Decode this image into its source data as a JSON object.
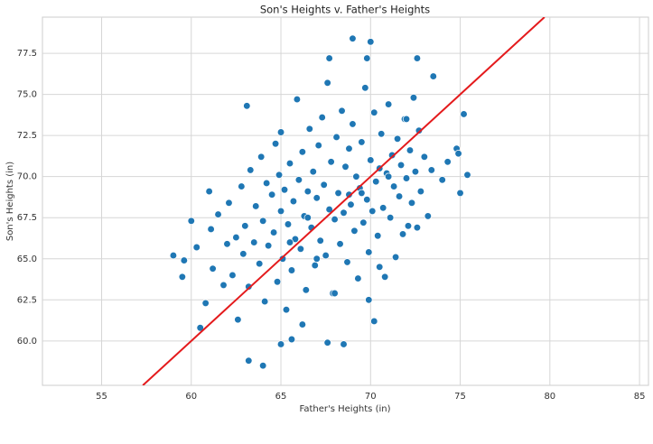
{
  "chart_data": {
    "type": "scatter",
    "title": "Son's Heights v. Father's Heights",
    "xlabel": "Father's Heights (in)",
    "ylabel": "Son's Heights (in)",
    "xlim": [
      51.7,
      85.5
    ],
    "ylim": [
      57.3,
      79.7
    ],
    "xticks": [
      55,
      60,
      65,
      70,
      75,
      80,
      85
    ],
    "yticks": [
      {
        "value": 60,
        "label": "60.0"
      },
      {
        "value": 62.5,
        "label": "62.5"
      },
      {
        "value": 65,
        "label": "65.0"
      },
      {
        "value": 67.5,
        "label": "67.5"
      },
      {
        "value": 70,
        "label": "70.0"
      },
      {
        "value": 72.5,
        "label": "72.5"
      },
      {
        "value": 75,
        "label": "75.0"
      },
      {
        "value": 77.5,
        "label": "77.5"
      }
    ],
    "grid": true,
    "color": "#1f77b4",
    "x": [
      59.0,
      59.5,
      59.6,
      60.0,
      60.3,
      60.5,
      60.8,
      61.0,
      61.1,
      61.2,
      61.5,
      61.8,
      62.0,
      62.1,
      62.3,
      62.5,
      62.6,
      62.8,
      62.9,
      63.0,
      63.1,
      63.2,
      63.3,
      63.5,
      63.6,
      63.8,
      63.9,
      64.0,
      64.1,
      64.2,
      64.3,
      64.5,
      64.6,
      64.7,
      64.8,
      64.9,
      65.0,
      65.0,
      65.1,
      65.2,
      65.3,
      65.4,
      65.5,
      65.6,
      65.7,
      65.8,
      65.9,
      66.0,
      66.1,
      66.2,
      66.3,
      66.4,
      66.5,
      66.6,
      66.7,
      66.8,
      66.9,
      67.0,
      67.1,
      67.2,
      67.3,
      67.4,
      67.5,
      67.6,
      67.7,
      67.8,
      67.9,
      68.0,
      68.1,
      68.2,
      68.3,
      68.4,
      68.5,
      68.6,
      68.7,
      68.8,
      68.9,
      69.0,
      69.1,
      69.2,
      69.3,
      69.4,
      69.5,
      69.6,
      69.7,
      69.8,
      69.9,
      70.0,
      70.1,
      70.2,
      70.3,
      70.4,
      70.5,
      70.6,
      70.7,
      70.8,
      70.9,
      71.0,
      71.1,
      71.2,
      71.3,
      71.4,
      71.5,
      71.6,
      71.7,
      71.8,
      71.9,
      72.0,
      72.1,
      72.2,
      72.3,
      72.4,
      72.5,
      72.6,
      72.7,
      72.8,
      73.0,
      73.2,
      73.4,
      73.5,
      74.0,
      74.3,
      74.8,
      74.9,
      75.0,
      75.2,
      75.4,
      63.2,
      64.0,
      69.0,
      70.0,
      67.7,
      69.8,
      72.6,
      68.5,
      65.0,
      65.6,
      67.6,
      70.2,
      66.2,
      68.0,
      69.9,
      70.5,
      67.0,
      66.5,
      68.8,
      69.5,
      71.0,
      72.0,
      65.5
    ],
    "values": [
      65.2,
      63.9,
      64.9,
      67.3,
      65.7,
      60.8,
      62.3,
      69.1,
      66.8,
      64.4,
      67.7,
      63.4,
      65.9,
      68.4,
      64.0,
      66.3,
      61.3,
      69.4,
      65.3,
      67.0,
      74.3,
      63.3,
      70.4,
      66.0,
      68.2,
      64.7,
      71.2,
      67.3,
      62.4,
      69.6,
      65.8,
      68.9,
      66.6,
      72.0,
      63.6,
      70.1,
      67.9,
      72.7,
      65.0,
      69.2,
      61.9,
      67.1,
      70.8,
      64.3,
      68.5,
      66.2,
      74.7,
      69.8,
      65.6,
      71.5,
      67.6,
      63.1,
      69.1,
      72.9,
      66.9,
      70.3,
      64.6,
      68.7,
      71.9,
      66.1,
      73.6,
      69.5,
      65.2,
      75.7,
      68.0,
      70.9,
      62.9,
      67.4,
      72.4,
      69.0,
      65.9,
      74.0,
      67.8,
      70.6,
      64.8,
      71.7,
      68.3,
      73.2,
      66.7,
      70.0,
      63.8,
      69.3,
      72.1,
      67.2,
      75.4,
      68.6,
      65.4,
      71.0,
      67.9,
      73.9,
      69.7,
      66.4,
      70.5,
      72.6,
      68.1,
      63.9,
      70.2,
      74.4,
      67.5,
      71.3,
      69.4,
      65.1,
      72.3,
      68.8,
      70.7,
      66.5,
      73.5,
      69.9,
      67.0,
      71.6,
      68.4,
      74.8,
      70.3,
      66.9,
      72.8,
      69.1,
      71.2,
      67.6,
      70.4,
      76.1,
      69.8,
      70.9,
      71.7,
      71.4,
      69.0,
      73.8,
      70.1,
      58.8,
      58.5,
      78.4,
      78.2,
      77.2,
      77.2,
      77.2,
      59.8,
      59.8,
      60.1,
      59.9,
      61.2,
      61.0,
      62.9,
      62.5,
      64.5,
      65.0,
      67.5,
      68.9,
      69.0,
      70.0,
      73.5,
      66.0
    ],
    "line": {
      "color": "#e41a1c",
      "x": [
        57.3,
        79.7
      ],
      "y": [
        57.3,
        79.7
      ]
    }
  }
}
